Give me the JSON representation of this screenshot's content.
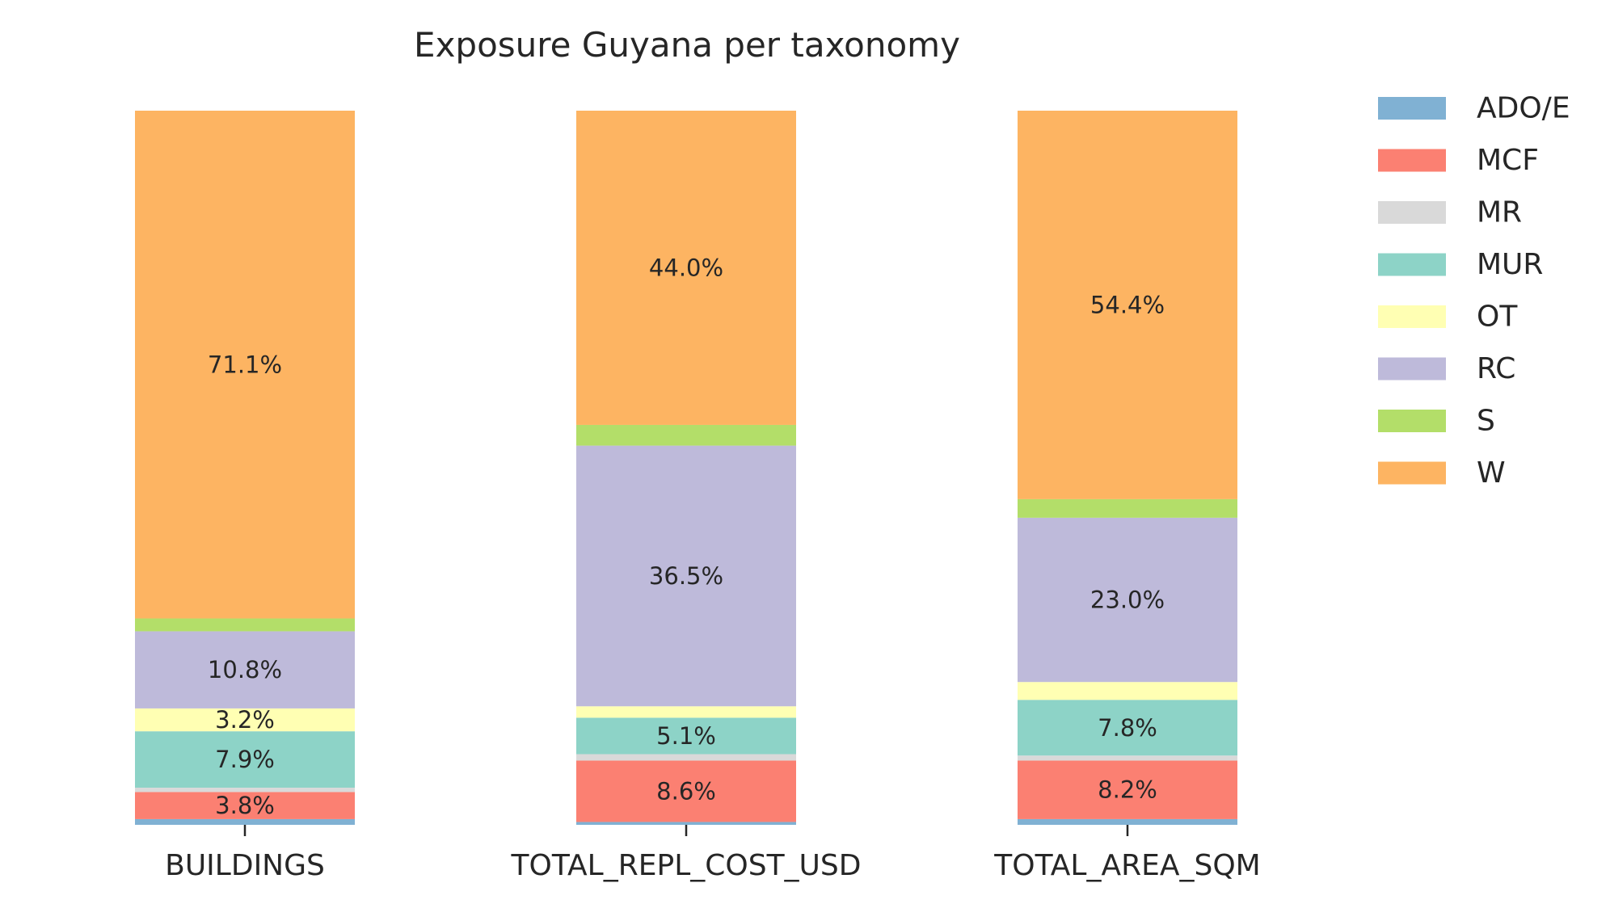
{
  "chart_data": {
    "type": "bar",
    "stacked": true,
    "normalized": true,
    "title": "Exposure Guyana per taxonomy",
    "xlabel": "",
    "ylabel": "",
    "ylim": [
      0,
      100
    ],
    "grid": false,
    "legend_position": "right",
    "categories": [
      "BUILDINGS",
      "TOTAL_REPL_COST_USD",
      "TOTAL_AREA_SQM"
    ],
    "series": [
      {
        "name": "ADO/E",
        "color": "#80b1d3",
        "values": [
          0.8,
          0.4,
          0.8
        ],
        "labels": [
          "",
          "",
          ""
        ]
      },
      {
        "name": "MCF",
        "color": "#fb8072",
        "values": [
          3.8,
          8.6,
          8.2
        ],
        "labels": [
          "3.8%",
          "8.6%",
          "8.2%"
        ]
      },
      {
        "name": "MR",
        "color": "#d9d9d9",
        "values": [
          0.6,
          0.9,
          0.7
        ],
        "labels": [
          "",
          "",
          ""
        ]
      },
      {
        "name": "MUR",
        "color": "#8dd3c7",
        "values": [
          7.9,
          5.1,
          7.8
        ],
        "labels": [
          "7.9%",
          "5.1%",
          "7.8%"
        ]
      },
      {
        "name": "OT",
        "color": "#ffffb3",
        "values": [
          3.2,
          1.6,
          2.5
        ],
        "labels": [
          "3.2%",
          "",
          ""
        ]
      },
      {
        "name": "RC",
        "color": "#bebada",
        "values": [
          10.8,
          36.5,
          23.0
        ],
        "labels": [
          "10.8%",
          "36.5%",
          "23.0%"
        ]
      },
      {
        "name": "S",
        "color": "#b3de69",
        "values": [
          1.8,
          2.9,
          2.6
        ],
        "labels": [
          "",
          "",
          ""
        ]
      },
      {
        "name": "W",
        "color": "#fdb462",
        "values": [
          71.1,
          44.0,
          54.4
        ],
        "labels": [
          "71.1%",
          "44.0%",
          "54.4%"
        ]
      }
    ]
  }
}
